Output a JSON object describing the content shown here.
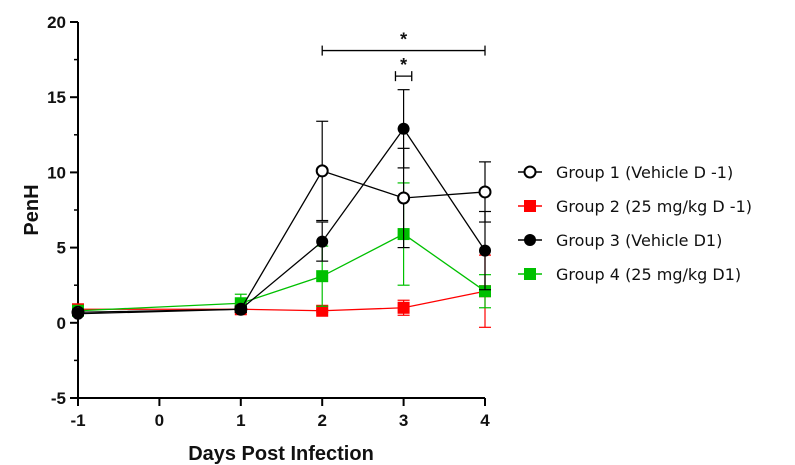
{
  "chart_data": {
    "type": "line",
    "xlabel": "Days Post Infection",
    "ylabel": "PenH",
    "xlim": [
      -1,
      4
    ],
    "ylim": [
      -5,
      20
    ],
    "x_ticks": [
      -1,
      0,
      1,
      2,
      3,
      4
    ],
    "y_ticks": [
      -5,
      0,
      5,
      10,
      15,
      20
    ],
    "legend_position": "right",
    "series": [
      {
        "name": "Group 1 (Vehicle D -1)",
        "color": "#000000",
        "marker": "open-circle",
        "x": [
          -1,
          1,
          2,
          3,
          4
        ],
        "y": [
          0.7,
          0.9,
          10.1,
          8.3,
          8.7
        ],
        "error": [
          0.2,
          0.2,
          3.3,
          3.3,
          2.0
        ]
      },
      {
        "name": "Group 2 (25 mg/kg D -1)",
        "color": "#ff0000",
        "marker": "square",
        "x": [
          -1,
          1,
          2,
          3,
          4
        ],
        "y": [
          0.9,
          0.9,
          0.8,
          1.0,
          2.1
        ],
        "error": [
          0.1,
          0.2,
          0.1,
          0.5,
          2.4
        ]
      },
      {
        "name": "Group 3 (Vehicle D1)",
        "color": "#000000",
        "marker": "filled-circle",
        "x": [
          -1,
          1,
          2,
          3,
          4
        ],
        "y": [
          0.6,
          0.9,
          5.4,
          12.9,
          4.8
        ],
        "error": [
          0.1,
          0.2,
          1.3,
          2.6,
          2.6
        ]
      },
      {
        "name": "Group 4 (25 mg/kg D1)",
        "color": "#00c000",
        "marker": "square",
        "x": [
          -1,
          1,
          2,
          3,
          4
        ],
        "y": [
          0.8,
          1.3,
          3.1,
          5.9,
          2.1
        ],
        "error": [
          0.1,
          0.6,
          2.0,
          3.4,
          1.1
        ]
      }
    ],
    "annotations": [
      {
        "label": "*",
        "x_start": 2,
        "x_end": 4,
        "y": 18.1
      },
      {
        "label": "*",
        "x_start": 2.9,
        "x_end": 3.1,
        "y": 16.4
      }
    ]
  }
}
